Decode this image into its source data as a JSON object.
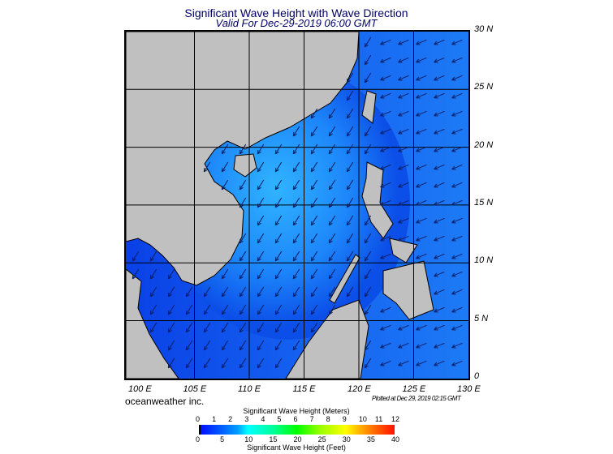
{
  "header": {
    "title": "Significant Wave Height with Wave Direction",
    "valid": "Valid For Dec-29-2019 06:00 GMT"
  },
  "map": {
    "lon_labels": [
      "100 E",
      "105 E",
      "110 E",
      "115 E",
      "120 E",
      "125 E",
      "130 E"
    ],
    "lat_labels": [
      "30 N",
      "25 N",
      "20 N",
      "15 N",
      "10 N",
      "5 N",
      "0"
    ],
    "land_color": "#c0c0c0",
    "sea_colors": [
      "#0a3ee0",
      "#1a6cf5",
      "#29a6ff"
    ]
  },
  "footer": {
    "credit": "oceanweather inc.",
    "plotted": "Plotted at Dec 29, 2019 02:15 GMT"
  },
  "colorbar": {
    "meters_title": "Significant Wave Height (Meters)",
    "meters_ticks": [
      "0",
      "1",
      "2",
      "3",
      "4",
      "5",
      "6",
      "7",
      "8",
      "9",
      "10",
      "11",
      "12"
    ],
    "feet_ticks": [
      "0",
      "5",
      "10",
      "15",
      "20",
      "25",
      "30",
      "35",
      "40"
    ],
    "feet_title": "Significant Wave Height (Feet)"
  }
}
